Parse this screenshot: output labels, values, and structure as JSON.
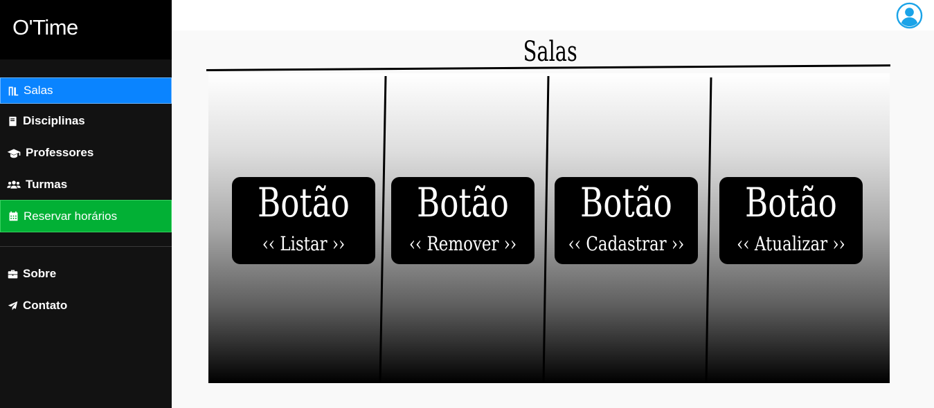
{
  "app": {
    "brand": "O'Time"
  },
  "sidebar": {
    "items": [
      {
        "label": "Salas",
        "icon": "door-icon"
      },
      {
        "label": "Disciplinas",
        "icon": "book-icon"
      },
      {
        "label": "Professores",
        "icon": "graduation-cap-icon"
      },
      {
        "label": "Turmas",
        "icon": "users-icon"
      },
      {
        "label": "Reservar horários",
        "icon": "calendar-icon"
      },
      {
        "label": "Sobre",
        "icon": "briefcase-icon"
      },
      {
        "label": "Contato",
        "icon": "paper-plane-icon"
      }
    ]
  },
  "header": {
    "avatar_icon": "user-circle-icon"
  },
  "main": {
    "title": "Salas",
    "cards": [
      {
        "title": "Botão",
        "action": "‹‹ Listar ››"
      },
      {
        "title": "Botão",
        "action": "‹‹ Remover ››"
      },
      {
        "title": "Botão",
        "action": "‹‹ Cadastrar ››"
      },
      {
        "title": "Botão",
        "action": "‹‹ Atualizar ››"
      }
    ]
  },
  "colors": {
    "active": "#0a84ff",
    "reserve": "#02b035",
    "sidebar": "#121212",
    "avatar": "#1aa3e8"
  }
}
